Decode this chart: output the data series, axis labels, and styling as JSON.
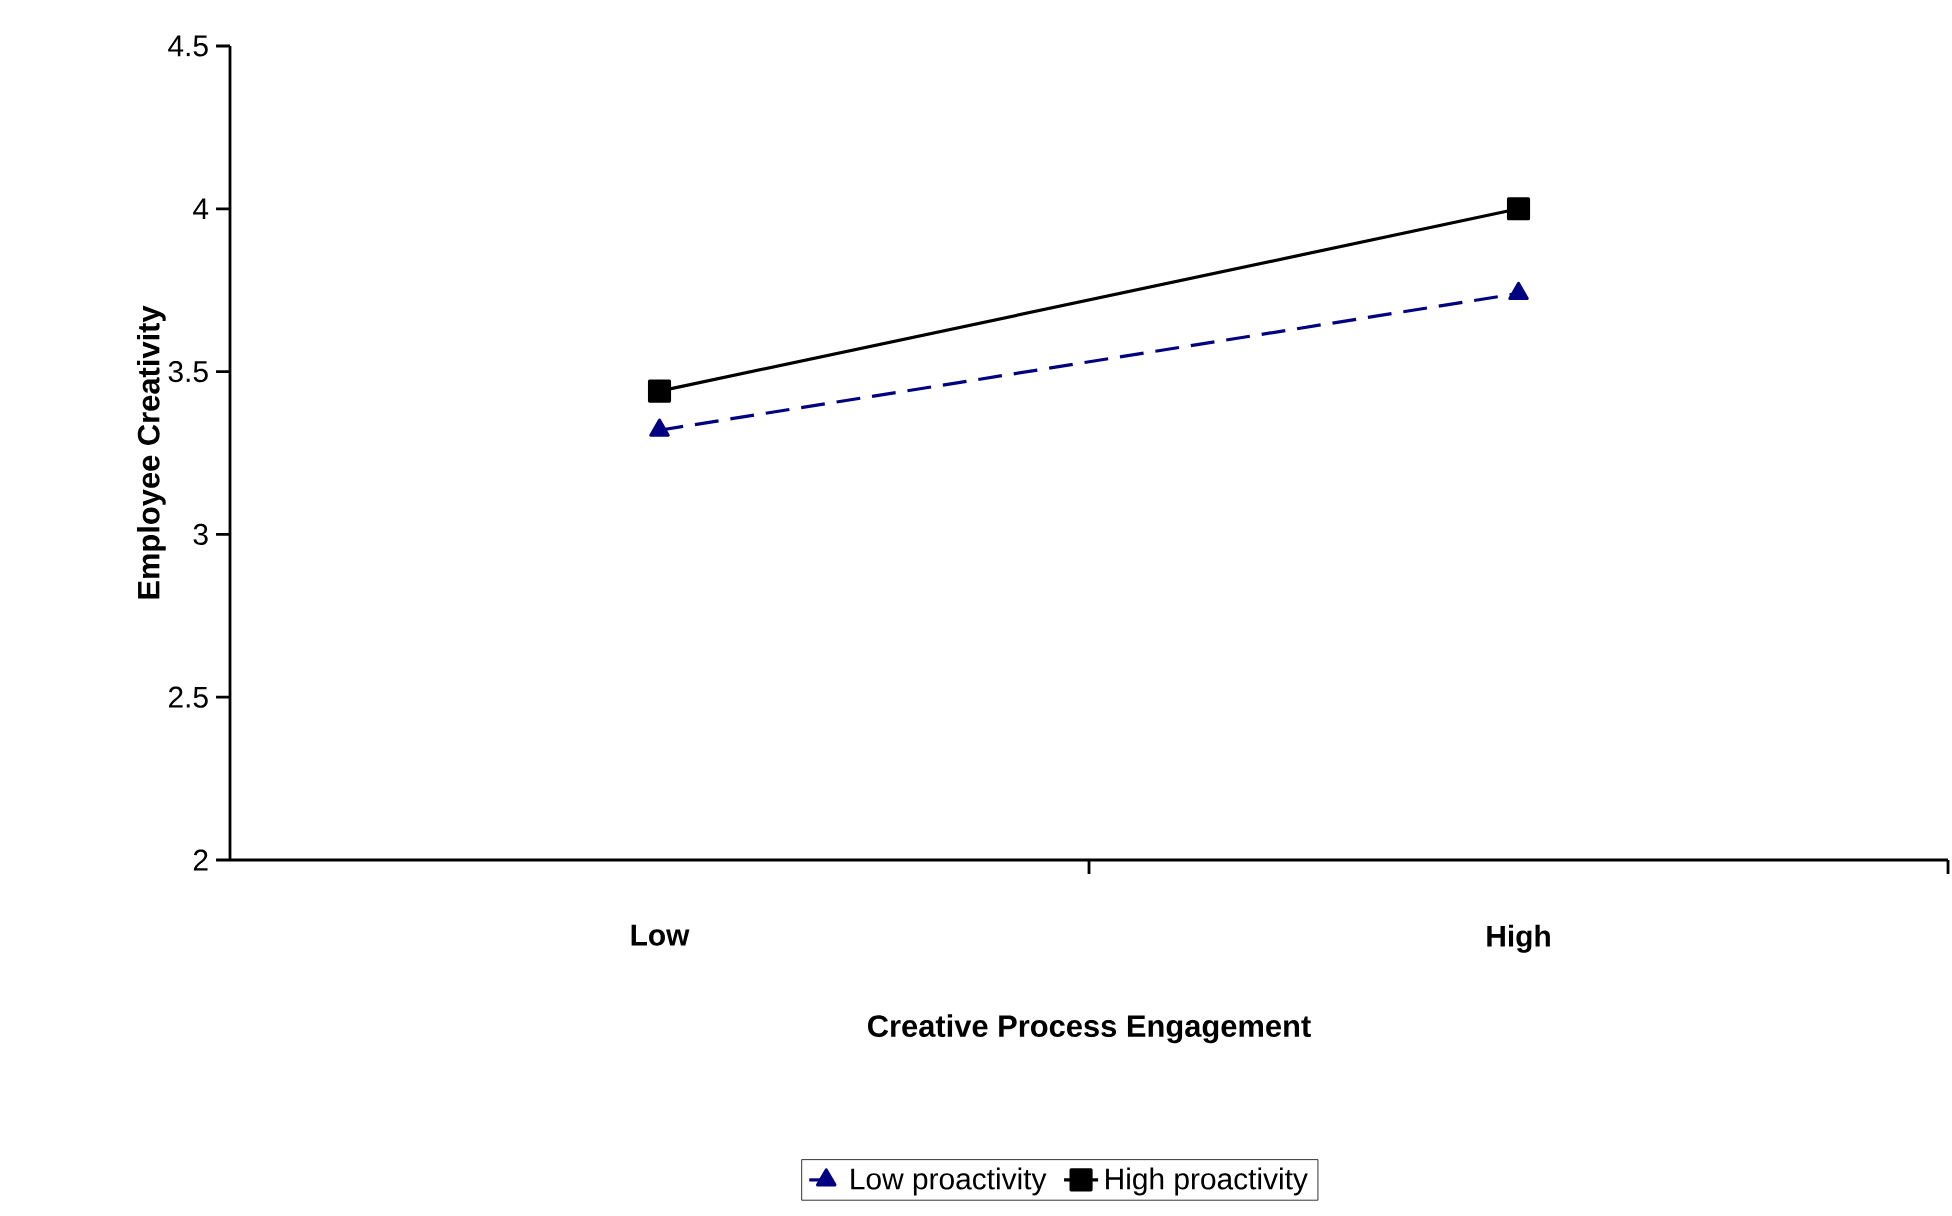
{
  "chart_data": {
    "type": "line",
    "xlabel": "Creative Process Engagement",
    "ylabel": "Employee Creativity",
    "categories": [
      "Low",
      "High"
    ],
    "series": [
      {
        "name": "Low proactivity",
        "color": "#000080",
        "values": [
          3.32,
          3.74
        ],
        "marker": "triangle",
        "line_style": "dashed"
      },
      {
        "name": "High proactivity",
        "color": "#000000",
        "values": [
          3.44,
          4.0
        ],
        "marker": "square",
        "line_style": "solid"
      }
    ],
    "ylim": [
      2,
      4.5
    ],
    "yticks": [
      2,
      2.5,
      3,
      3.5,
      4,
      4.5
    ],
    "legend": "bottom"
  }
}
